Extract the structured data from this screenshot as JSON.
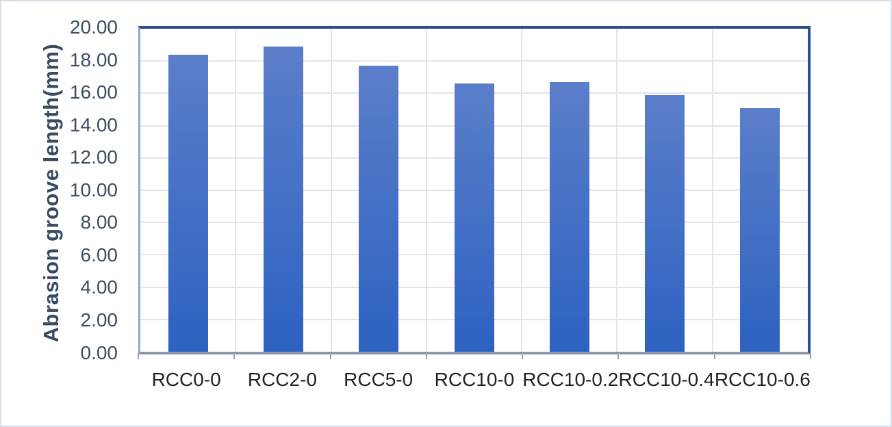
{
  "chart_data": {
    "type": "bar",
    "title": "",
    "categories": [
      "RCC0-0",
      "RCC2-0",
      "RCC5-0",
      "RCC10-0",
      "RCC10-0.2",
      "RCC10-0.4",
      "RCC10-0.6"
    ],
    "values": [
      18.4,
      18.9,
      17.7,
      16.6,
      16.7,
      15.9,
      15.1
    ],
    "xlabel": "",
    "ylabel": "Abrasion groove length(mm)",
    "ylim": [
      0,
      20
    ],
    "ytick_step": 2,
    "yticks": [
      "0.00",
      "2.00",
      "4.00",
      "6.00",
      "8.00",
      "10.00",
      "12.00",
      "14.00",
      "16.00",
      "18.00",
      "20.00"
    ],
    "grid": "major horizontal and vertical gridlines on",
    "legend_position": "none",
    "colors": {
      "bar_gradient_top": "#5b7eca",
      "bar_gradient_bottom": "#2d62c1",
      "plot_border": "#2e4f8e",
      "plot_left_border": "#96a6d1",
      "axis_line": "#8c97a9",
      "gridline": "#e1e5ec",
      "ytick_label": "#3d4e63",
      "xtick_label": "#222222",
      "ylabel_color": "#394a63",
      "figure_border": "#d6dde8"
    }
  }
}
